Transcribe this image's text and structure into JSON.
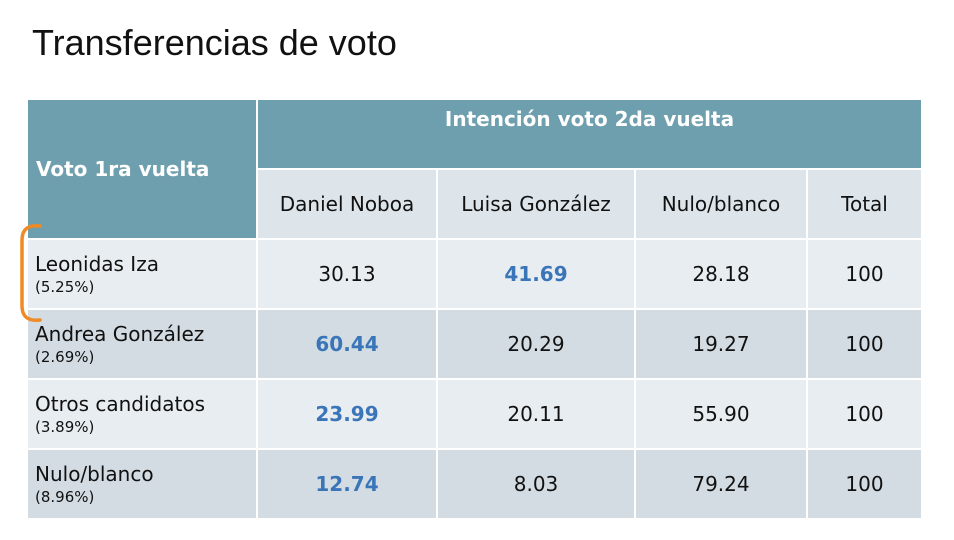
{
  "title": "Transferencias de voto",
  "table": {
    "corner_label": "Voto 1ra vuelta",
    "group_label": "Intención voto 2da vuelta",
    "columns": [
      "Daniel Noboa",
      "Luisa González",
      "Nulo/blanco",
      "Total"
    ],
    "rows": [
      {
        "name": "Leonidas Iza",
        "share": "(5.25%)",
        "values": [
          "30.13",
          "41.69",
          "28.18",
          "100"
        ],
        "highlight_index": 1
      },
      {
        "name": "Andrea González",
        "share": "(2.69%)",
        "values": [
          "60.44",
          "20.29",
          "19.27",
          "100"
        ],
        "highlight_index": 0
      },
      {
        "name": "Otros candidatos",
        "share": "(3.89%)",
        "values": [
          "23.99",
          "20.11",
          "55.90",
          "100"
        ],
        "highlight_index": 0
      },
      {
        "name": "Nulo/blanco",
        "share": "(8.96%)",
        "values": [
          "12.74",
          "8.03",
          "79.24",
          "100"
        ],
        "highlight_index": 0
      }
    ]
  },
  "colors": {
    "header_bg": "#6e9fae",
    "subheader_bg": "#dde5ea",
    "row_light": "#e8edf1",
    "row_dark": "#d3dce3",
    "highlight_text": "#3a75b8",
    "annotation": "#f08a24"
  },
  "annotation": {
    "icon": "orange-bracket-icon"
  }
}
